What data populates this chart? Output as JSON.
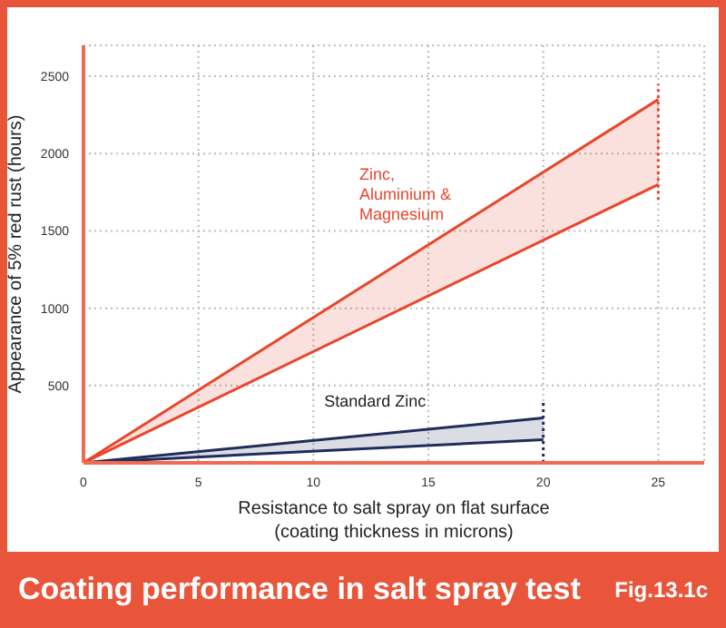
{
  "chart_data": {
    "type": "line",
    "title": "Coating performance in salt spray test",
    "annotations": [
      "Fig.13.1c"
    ],
    "xlabel": "Resistance to salt spray on flat surface (coating thickness in microns)",
    "ylabel": "Appearance of 5% red rust (hours)",
    "xlim": [
      0,
      27
    ],
    "xticks": [
      0,
      5,
      10,
      15,
      20,
      25
    ],
    "ylim": [
      0,
      2700
    ],
    "yticks": [
      500,
      1000,
      1500,
      2000,
      2500
    ],
    "grid": true,
    "marker": "none",
    "series": [
      {
        "name": "Zinc, Aluminium & Magnesium",
        "color": "#e8452c",
        "x": [
          0,
          25
        ],
        "values": [
          0,
          2350
        ],
        "lower": [
          0,
          1800
        ],
        "upper": [
          0,
          2350
        ]
      },
      {
        "color": "#e8452c",
        "x": [
          0,
          25
        ],
        "values": [
          0,
          1800
        ]
      },
      {
        "name": "Standard Zinc",
        "color": "#1f2d5c",
        "x": [
          0,
          20
        ],
        "values": [
          0,
          290
        ],
        "lower": [
          0,
          150
        ],
        "upper": [
          0,
          290
        ]
      },
      {
        "color": "#1f2d5c",
        "x": [
          0,
          20
        ],
        "values": [
          0,
          150
        ]
      },
      {
        "color": "#e8452c",
        "x": [
          25,
          25
        ],
        "values": [
          1700,
          2450
        ],
        "line_style": "dotted"
      },
      {
        "color": "#1f2d5c",
        "x": [
          20,
          20
        ],
        "values": [
          0,
          400
        ],
        "line_style": "dotted"
      }
    ]
  }
}
